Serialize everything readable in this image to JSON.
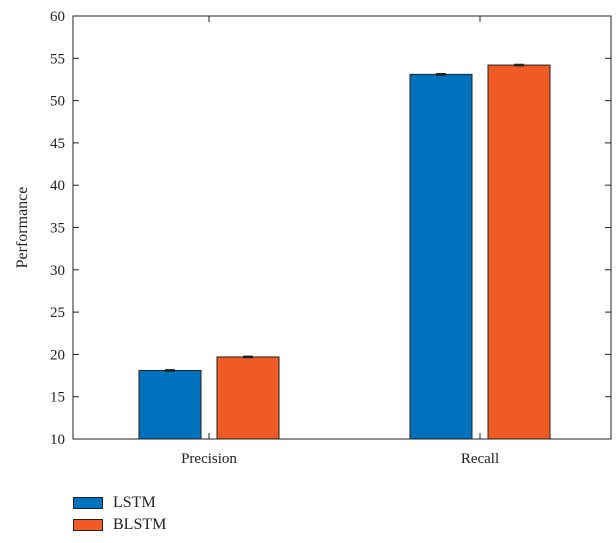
{
  "chart_data": {
    "type": "bar",
    "categories": [
      "Precision",
      "Recall"
    ],
    "series": [
      {
        "name": "LSTM",
        "values": [
          18.1,
          53.1
        ],
        "error": [
          0.1,
          0.1
        ],
        "color": "#0072bd"
      },
      {
        "name": "BLSTM",
        "values": [
          19.7,
          54.2
        ],
        "error": [
          0.1,
          0.1
        ],
        "color": "#f05a23"
      }
    ],
    "xlabel": "",
    "ylabel": "Performance",
    "ylim": [
      10,
      60
    ],
    "yticks": [
      10,
      15,
      20,
      25,
      30,
      35,
      40,
      45,
      50,
      55,
      60
    ],
    "grid": false,
    "legend_position": "bottom-left"
  }
}
